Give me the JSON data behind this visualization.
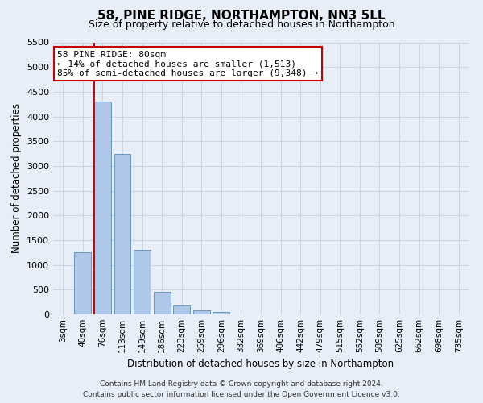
{
  "title": "58, PINE RIDGE, NORTHAMPTON, NN3 5LL",
  "subtitle": "Size of property relative to detached houses in Northampton",
  "xlabel": "Distribution of detached houses by size in Northampton",
  "ylabel": "Number of detached properties",
  "footer_line1": "Contains HM Land Registry data © Crown copyright and database right 2024.",
  "footer_line2": "Contains public sector information licensed under the Open Government Licence v3.0.",
  "annotation_line1": "58 PINE RIDGE: 80sqm",
  "annotation_line2": "← 14% of detached houses are smaller (1,513)",
  "annotation_line3": "85% of semi-detached houses are larger (9,348) →",
  "bar_categories": [
    "3sqm",
    "40sqm",
    "76sqm",
    "113sqm",
    "149sqm",
    "186sqm",
    "223sqm",
    "259sqm",
    "296sqm",
    "332sqm",
    "369sqm",
    "406sqm",
    "442sqm",
    "479sqm",
    "515sqm",
    "552sqm",
    "589sqm",
    "625sqm",
    "662sqm",
    "698sqm",
    "735sqm"
  ],
  "bar_values": [
    0,
    1250,
    4300,
    3250,
    1300,
    450,
    175,
    75,
    50,
    0,
    0,
    0,
    0,
    0,
    0,
    0,
    0,
    0,
    0,
    0,
    0
  ],
  "bar_color": "#aec6e8",
  "bar_edge_color": "#5b8db8",
  "vline_color": "#cc0000",
  "vline_x": 1.57,
  "ylim": [
    0,
    5500
  ],
  "yticks": [
    0,
    500,
    1000,
    1500,
    2000,
    2500,
    3000,
    3500,
    4000,
    4500,
    5000,
    5500
  ],
  "grid_color": "#c8d4e8",
  "background_color": "#e8eef8",
  "title_fontsize": 11,
  "subtitle_fontsize": 9,
  "xlabel_fontsize": 8.5,
  "ylabel_fontsize": 8.5,
  "tick_fontsize": 8,
  "xtick_fontsize": 7.5,
  "annotation_box_color": "#cc0000",
  "annotation_bg_color": "#ffffff",
  "annotation_fontsize": 8,
  "footer_fontsize": 6.5
}
